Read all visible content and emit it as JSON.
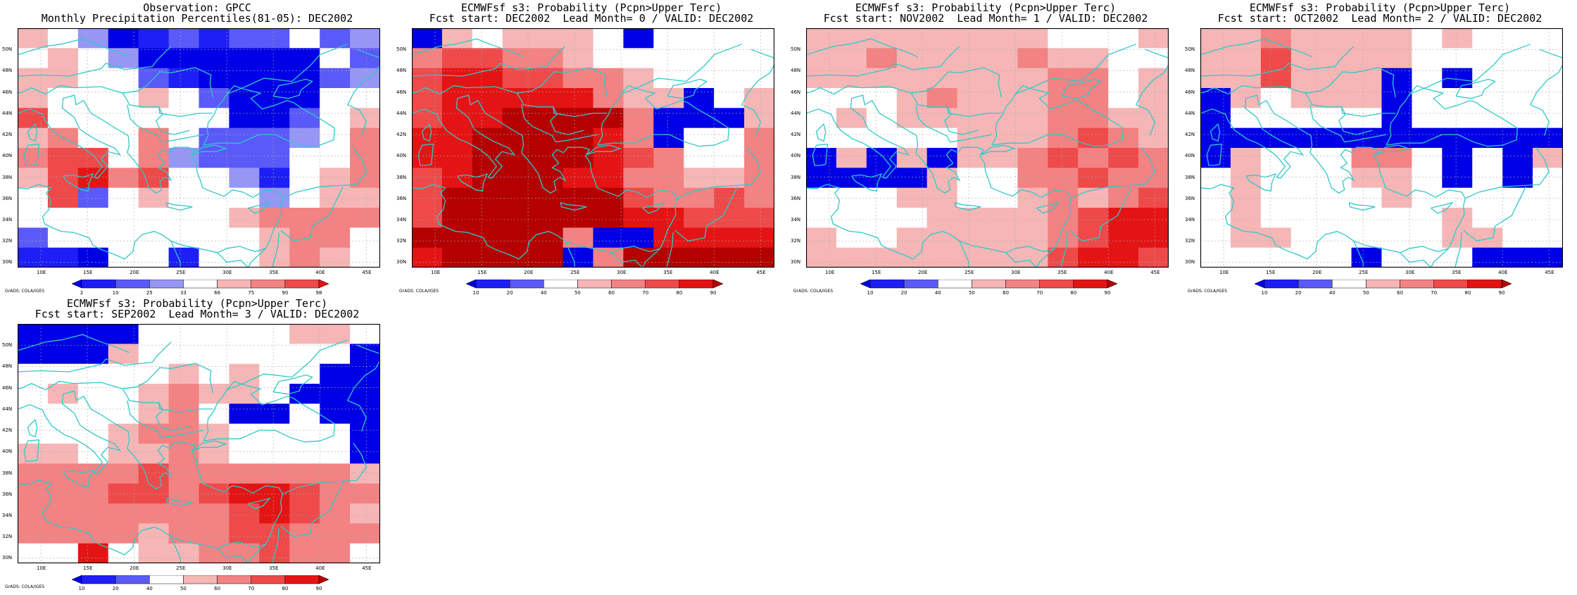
{
  "colors": {
    "d1": "#0000e6",
    "d2": "#1e1ef6",
    "d3": "#5a5af8",
    "d4": "#9696f5",
    "w": "#ffffff",
    "r1": "#f6b6b6",
    "r2": "#f38282",
    "r3": "#ee4a4a",
    "r4": "#e41414",
    "r5": "#b40000",
    "coast": "#30c8c8",
    "grid": "#aaaaaa"
  },
  "panels": [
    {
      "id": "obs",
      "title_line1": "Observation: GPCC",
      "title_line2": "Monthly Precipitation Percentiles(81-05): DEC2002",
      "credit": "GrADS: COLA/IGES",
      "colorbar": {
        "labels": [
          "2",
          "10",
          "25",
          "33",
          "66",
          "75",
          "90",
          "98"
        ],
        "colors": [
          "d1",
          "d2",
          "d3",
          "d4",
          "w",
          "r1",
          "r2",
          "r3",
          "r4"
        ]
      },
      "grid": [
        "rwdddddddwdd",
        "wrwddddddwdd",
        "rrwwddddddwd",
        "rwwwwwddddww",
        "rwwwwwwdddwr",
        "rrwwwwwdddwr",
        "rrrwrdddddwr",
        "rrrrrwwwdwrr",
        "wrdwrwwwwwrr",
        "wwwwwwwwrrrr",
        "dwwwwwwwrrrw",
        "dddwwdwwrrrw"
      ],
      "shade": [
        "r1w3d4444w34",
        "wr1w444444w3",
        "r1r1ww44444434",
        "r1www1w4444ww",
        "r3wwwwww4d3wr1",
        "r1r2ww2w43d4wr2",
        "r2r3r3wr2d333wr2",
        "r1r3r4r2r3wwd2wr1r2",
        "wr3d4wr1wwwd4wr1r1",
        "wwwwwwwwr1r2r2r2",
        "d3wwwwwwwr1r2r2w",
        "d4d4d4wwd4wwr1r2r1w"
      ]
    },
    {
      "id": "lead0",
      "title_line1": "ECMWFsf s3: Probability (Pcpn>Upper Terc)",
      "title_line2": "Fcst start: DEC2002  Lead Month= 0 / VALID: DEC2002",
      "credit": "GrADS: COLA/IGES",
      "colorbar": {
        "labels": [
          "10",
          "20",
          "40",
          "50",
          "60",
          "70",
          "80",
          "90"
        ],
        "colors": [
          "d1",
          "d2",
          "d3",
          "w",
          "r1",
          "r2",
          "r3",
          "r4",
          "r5"
        ]
      }
    },
    {
      "id": "lead1",
      "title_line1": "ECMWFsf s3: Probability (Pcpn>Upper Terc)",
      "title_line2": "Fcst start: NOV2002  Lead Month= 1 / VALID: DEC2002",
      "credit": "GrADS: COLA/IGES",
      "colorbar": {
        "labels": [
          "10",
          "20",
          "40",
          "50",
          "60",
          "70",
          "80",
          "90"
        ],
        "colors": [
          "d1",
          "d2",
          "d3",
          "w",
          "r1",
          "r2",
          "r3",
          "r4",
          "r5"
        ]
      }
    },
    {
      "id": "lead2",
      "title_line1": "ECMWFsf s3: Probability (Pcpn>Upper Terc)",
      "title_line2": "Fcst start: OCT2002  Lead Month= 2 / VALID: DEC2002",
      "credit": "GrADS: COLA/IGES",
      "colorbar": {
        "labels": [
          "10",
          "20",
          "40",
          "50",
          "60",
          "70",
          "80",
          "90"
        ],
        "colors": [
          "d1",
          "d2",
          "d3",
          "w",
          "r1",
          "r2",
          "r3",
          "r4",
          "r5"
        ]
      }
    },
    {
      "id": "lead3",
      "title_line1": "ECMWFsf s3: Probability (Pcpn>Upper Terc)",
      "title_line2": "Fcst start: SEP2002  Lead Month= 3 / VALID: DEC2002",
      "credit": "GrADS: COLA/IGES",
      "colorbar": {
        "labels": [
          "10",
          "20",
          "40",
          "50",
          "60",
          "70",
          "80",
          "90"
        ],
        "colors": [
          "d1",
          "d2",
          "d3",
          "w",
          "r1",
          "r2",
          "r3",
          "r4",
          "r5"
        ]
      }
    }
  ],
  "cells": {
    "obs": [
      [
        "r1",
        "w",
        "d4",
        "d1",
        "d2",
        "d3",
        "d2",
        "d3",
        "d3",
        "w",
        "d3",
        "d4"
      ],
      [
        "w",
        "r1",
        "w",
        "d4",
        "d1",
        "d1",
        "d1",
        "d1",
        "d1",
        "d1",
        "w",
        "d3"
      ],
      [
        "r1",
        "r1",
        "w",
        "w",
        "d3",
        "d2",
        "d1",
        "d1",
        "d1",
        "d1",
        "d3",
        "d4"
      ],
      [
        "r1",
        "w",
        "w",
        "w",
        "r1",
        "w",
        "d3",
        "d1",
        "d1",
        "d1",
        "w",
        "w"
      ],
      [
        "r3",
        "w",
        "w",
        "w",
        "w",
        "w",
        "w",
        "d1",
        "d1",
        "d3",
        "w",
        "r1"
      ],
      [
        "r1",
        "r2",
        "w",
        "w",
        "r2",
        "w",
        "d3",
        "d3",
        "d3",
        "d4",
        "w",
        "r2"
      ],
      [
        "r2",
        "r3",
        "r3",
        "w",
        "r2",
        "d4",
        "d3",
        "d3",
        "d3",
        "w",
        "w",
        "r2"
      ],
      [
        "r1",
        "r3",
        "r4",
        "r2",
        "r3",
        "w",
        "w",
        "d4",
        "d2",
        "w",
        "r1",
        "r2"
      ],
      [
        "w",
        "r3",
        "d3",
        "w",
        "r1",
        "w",
        "w",
        "w",
        "d4",
        "w",
        "r1",
        "r1"
      ],
      [
        "w",
        "w",
        "w",
        "w",
        "w",
        "w",
        "w",
        "r1",
        "r2",
        "r2",
        "r2",
        "r2"
      ],
      [
        "d3",
        "w",
        "w",
        "w",
        "w",
        "w",
        "w",
        "w",
        "r1",
        "r2",
        "r2",
        "w"
      ],
      [
        "d2",
        "d2",
        "d1",
        "w",
        "w",
        "d2",
        "w",
        "w",
        "r1",
        "r2",
        "r1",
        "w"
      ]
    ],
    "lead0": [
      [
        "d1",
        "r1",
        "w",
        "r1",
        "r1",
        "r1",
        "w",
        "d1",
        "w",
        "w",
        "w",
        "w"
      ],
      [
        "r2",
        "r3",
        "r3",
        "r2",
        "r2",
        "r1",
        "w",
        "w",
        "w",
        "w",
        "w",
        "w"
      ],
      [
        "r3",
        "r4",
        "r4",
        "r3",
        "r3",
        "r2",
        "r2",
        "r1",
        "w",
        "w",
        "w",
        "w"
      ],
      [
        "r3",
        "r4",
        "r4",
        "r4",
        "r4",
        "r4",
        "r2",
        "r1",
        "r1",
        "d1",
        "w",
        "r1"
      ],
      [
        "r3",
        "r4",
        "r4",
        "r5",
        "r5",
        "r5",
        "r5",
        "r2",
        "d1",
        "d1",
        "d1",
        "r1"
      ],
      [
        "r4",
        "r4",
        "r5",
        "r5",
        "r5",
        "r5",
        "r4",
        "r2",
        "d1",
        "w",
        "w",
        "r2"
      ],
      [
        "r4",
        "r4",
        "r5",
        "r5",
        "r5",
        "r5",
        "r4",
        "r3",
        "r2",
        "w",
        "w",
        "r2"
      ],
      [
        "r3",
        "r4",
        "r5",
        "r5",
        "r5",
        "r4",
        "r4",
        "r2",
        "r2",
        "r1",
        "r1",
        "r2"
      ],
      [
        "r3",
        "r5",
        "r5",
        "r5",
        "r5",
        "r5",
        "r5",
        "r3",
        "r2",
        "r2",
        "r3",
        "r2"
      ],
      [
        "r3",
        "r5",
        "r5",
        "r5",
        "r5",
        "r5",
        "r5",
        "r4",
        "r4",
        "r3",
        "r3",
        "r3"
      ],
      [
        "r5",
        "r5",
        "r5",
        "r5",
        "r5",
        "r2",
        "d1",
        "d1",
        "r4",
        "r4",
        "r4",
        "r4"
      ],
      [
        "r4",
        "r5",
        "r5",
        "r5",
        "r5",
        "d1",
        "r2",
        "r5",
        "r5",
        "r5",
        "r5",
        "r5"
      ]
    ],
    "lead1": [
      [
        "r1",
        "r1",
        "r1",
        "r1",
        "r1",
        "r1",
        "r1",
        "r1",
        "w",
        "w",
        "w",
        "r1"
      ],
      [
        "r1",
        "r1",
        "r2",
        "r1",
        "r1",
        "r1",
        "r1",
        "r2",
        "r1",
        "r1",
        "w",
        "w"
      ],
      [
        "r1",
        "r1",
        "r1",
        "r1",
        "r1",
        "r1",
        "r1",
        "r1",
        "r2",
        "r2",
        "w",
        "r1"
      ],
      [
        "w",
        "w",
        "w",
        "r1",
        "r2",
        "r1",
        "r1",
        "r1",
        "r2",
        "r2",
        "w",
        "r1"
      ],
      [
        "w",
        "r1",
        "w",
        "r1",
        "r1",
        "r1",
        "r1",
        "r1",
        "r2",
        "r2",
        "r1",
        "r1"
      ],
      [
        "w",
        "w",
        "w",
        "w",
        "w",
        "r1",
        "r1",
        "r1",
        "r2",
        "r3",
        "r2",
        "r1"
      ],
      [
        "d1",
        "r1",
        "d1",
        "r1",
        "d1",
        "r1",
        "r1",
        "r2",
        "r3",
        "r2",
        "r3",
        "r2"
      ],
      [
        "d1",
        "d1",
        "d1",
        "d1",
        "r1",
        "w",
        "w",
        "r2",
        "r2",
        "r3",
        "r2",
        "r2"
      ],
      [
        "w",
        "w",
        "w",
        "r1",
        "r1",
        "w",
        "w",
        "r1",
        "r2",
        "r1",
        "r2",
        "r3"
      ],
      [
        "w",
        "w",
        "w",
        "w",
        "r1",
        "r1",
        "r1",
        "r1",
        "r2",
        "r3",
        "r4",
        "r4"
      ],
      [
        "r1",
        "w",
        "w",
        "r1",
        "r1",
        "r1",
        "r1",
        "r1",
        "r2",
        "r3",
        "r4",
        "r4"
      ],
      [
        "r1",
        "r1",
        "r1",
        "r1",
        "r1",
        "r1",
        "r1",
        "r1",
        "r3",
        "r4",
        "r4",
        "r3"
      ]
    ],
    "lead2": [
      [
        "r1",
        "r1",
        "r2",
        "r1",
        "r1",
        "r1",
        "r1",
        "w",
        "r1",
        "w",
        "w",
        "w"
      ],
      [
        "r1",
        "r1",
        "r3",
        "r1",
        "r1",
        "r1",
        "r1",
        "w",
        "w",
        "w",
        "w",
        "w"
      ],
      [
        "r1",
        "r1",
        "r3",
        "r1",
        "r1",
        "r1",
        "d1",
        "w",
        "d1",
        "w",
        "w",
        "w"
      ],
      [
        "d1",
        "r1",
        "w",
        "r1",
        "r1",
        "r1",
        "d1",
        "w",
        "w",
        "w",
        "w",
        "w"
      ],
      [
        "d1",
        "w",
        "w",
        "w",
        "w",
        "w",
        "d1",
        "w",
        "w",
        "w",
        "w",
        "w"
      ],
      [
        "d1",
        "d1",
        "d1",
        "d1",
        "d1",
        "d1",
        "d1",
        "d1",
        "d1",
        "d1",
        "d1",
        "d1"
      ],
      [
        "d1",
        "r1",
        "w",
        "w",
        "w",
        "r2",
        "r2",
        "w",
        "d1",
        "w",
        "d1",
        "r1"
      ],
      [
        "w",
        "r1",
        "w",
        "w",
        "w",
        "r1",
        "r1",
        "w",
        "d1",
        "w",
        "d1",
        "w"
      ],
      [
        "w",
        "r1",
        "w",
        "w",
        "w",
        "w",
        "r1",
        "w",
        "w",
        "w",
        "w",
        "w"
      ],
      [
        "w",
        "r1",
        "w",
        "w",
        "w",
        "w",
        "w",
        "w",
        "r1",
        "w",
        "w",
        "w"
      ],
      [
        "w",
        "r1",
        "r1",
        "w",
        "w",
        "w",
        "w",
        "w",
        "r1",
        "r1",
        "w",
        "w"
      ],
      [
        "w",
        "w",
        "w",
        "w",
        "w",
        "d1",
        "w",
        "w",
        "w",
        "d1",
        "d1",
        "d1"
      ]
    ],
    "lead3": [
      [
        "d1",
        "d1",
        "d1",
        "d1",
        "w",
        "w",
        "w",
        "w",
        "w",
        "r1",
        "r1",
        "w"
      ],
      [
        "d1",
        "d1",
        "d1",
        "r1",
        "w",
        "w",
        "w",
        "w",
        "w",
        "w",
        "w",
        "d1"
      ],
      [
        "w",
        "w",
        "w",
        "w",
        "w",
        "r1",
        "w",
        "r1",
        "w",
        "w",
        "d1",
        "d1"
      ],
      [
        "w",
        "r1",
        "w",
        "w",
        "r1",
        "r2",
        "r1",
        "r1",
        "w",
        "d1",
        "d1",
        "d1"
      ],
      [
        "w",
        "w",
        "w",
        "w",
        "r1",
        "r2",
        "w",
        "d1",
        "d1",
        "w",
        "d1",
        "d1"
      ],
      [
        "w",
        "w",
        "w",
        "r1",
        "r2",
        "r2",
        "r1",
        "w",
        "w",
        "w",
        "w",
        "d1"
      ],
      [
        "r1",
        "r1",
        "w",
        "r1",
        "r1",
        "r2",
        "r1",
        "w",
        "w",
        "w",
        "w",
        "d1"
      ],
      [
        "r2",
        "r2",
        "r2",
        "r2",
        "r3",
        "r2",
        "r2",
        "r2",
        "r2",
        "r2",
        "r2",
        "r1"
      ],
      [
        "r2",
        "r2",
        "r2",
        "r3",
        "r3",
        "r2",
        "r3",
        "r4",
        "r4",
        "r3",
        "r2",
        "r2"
      ],
      [
        "r2",
        "r2",
        "r2",
        "r2",
        "r2",
        "r2",
        "r2",
        "r3",
        "r4",
        "r3",
        "r2",
        "r1"
      ],
      [
        "r2",
        "r2",
        "r2",
        "r2",
        "r1",
        "r2",
        "r2",
        "r3",
        "r3",
        "r2",
        "r2",
        "r2"
      ],
      [
        "w",
        "w",
        "r4",
        "w",
        "r1",
        "r1",
        "r2",
        "r2",
        "r3",
        "r2",
        "r2",
        "w"
      ]
    ]
  },
  "axes": {
    "lat_labels": [
      "50N",
      "48N",
      "46N",
      "44N",
      "42N",
      "40N",
      "38N",
      "36N",
      "34N",
      "32N",
      "30N"
    ],
    "lon_labels": [
      "10E",
      "15E",
      "20E",
      "25E",
      "30E",
      "35E",
      "40E",
      "45E"
    ]
  }
}
